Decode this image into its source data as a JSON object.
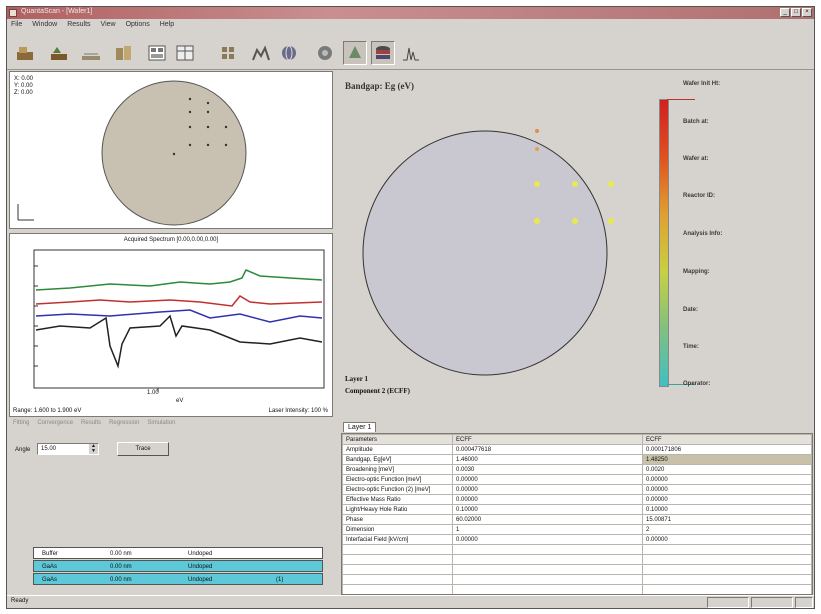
{
  "window": {
    "title": "QuantaScan - [Wafer1]"
  },
  "menu": [
    "File",
    "Window",
    "Results",
    "View",
    "Options",
    "Help"
  ],
  "toolbar": {
    "icons": [
      "open-wafer-icon",
      "load-spectra-icon",
      "wafer-map-icon",
      "layer-stack-icon",
      "grid-view-icon",
      "table-view-icon",
      "parameters-grid-icon",
      "fit-spectra-icon",
      "globe-icon",
      "target-icon",
      "layers-3d-icon",
      "stack-icon",
      "spectrum-peaks-icon"
    ]
  },
  "position": {
    "x": "X: 0.00",
    "y": "Y: 0.00",
    "z": "Z: 0.00"
  },
  "spectrum": {
    "title": "Acquired Spectrum [0.00,0.00,0.00]",
    "xlabel": "eV",
    "x_tick": "1.00",
    "footer_left": "Range: 1.600 to 1.900 eV",
    "footer_right": "Laser Intensity: 100 %"
  },
  "lower_tabs": [
    "Fitting",
    "Convergence",
    "Results",
    "Regression",
    "Simulation"
  ],
  "angle": {
    "label": "Angle",
    "value": "15.00",
    "button": "Trace"
  },
  "map": {
    "title": "Bandgap: Eg (eV)",
    "layer": "Layer 1",
    "component": "Component 2 (ECFF)",
    "side_labels": [
      "Wafer Init Ht:",
      "Batch at:",
      "Wafer at:",
      "Reactor ID:",
      "Analysis Info:",
      "Mapping:",
      "Date:",
      "Time:",
      "Operator:"
    ],
    "colors": {
      "background": "#c9c7cf",
      "dots": "#e8e850",
      "dots_hot": "#e09040"
    }
  },
  "layers_tab": "Layer 1",
  "params_table": {
    "headers": [
      "Parameters",
      "ECFF",
      "ECFF"
    ],
    "rows": [
      [
        "Amplitude",
        "0.000477618",
        "0.000171806"
      ],
      [
        "Bandgap, Eg[eV]",
        "1.46000",
        "1.48250"
      ],
      [
        "Broadening [meV]",
        "0.0030",
        "0.0020"
      ],
      [
        "Electro-optic Function [meV]",
        "0.00000",
        "0.00000"
      ],
      [
        "Electro-optic Function (2) [meV]",
        "0.00000",
        "0.00000"
      ],
      [
        "Effective Mass Ratio",
        "0.00000",
        "0.00000"
      ],
      [
        "Light/Heavy Hole Ratio",
        "0.10000",
        "0.10000"
      ],
      [
        "Phase",
        "60.02000",
        "15.00871"
      ],
      [
        "Dimension",
        "1",
        "2"
      ],
      [
        "Interfacial Field [kV/cm]",
        "0.00000",
        "0.00000"
      ]
    ],
    "highlight_row": 1
  },
  "layers_list": [
    {
      "name": "Buffer",
      "thickness": "0.00 nm",
      "status": "Undoped",
      "extra": ""
    },
    {
      "name": "GaAs",
      "thickness": "0.00 nm",
      "status": "Undoped",
      "extra": ""
    },
    {
      "name": "GaAs",
      "thickness": "0.00 nm",
      "status": "Undoped",
      "extra": "(1)"
    }
  ],
  "status": {
    "text": "Ready"
  }
}
